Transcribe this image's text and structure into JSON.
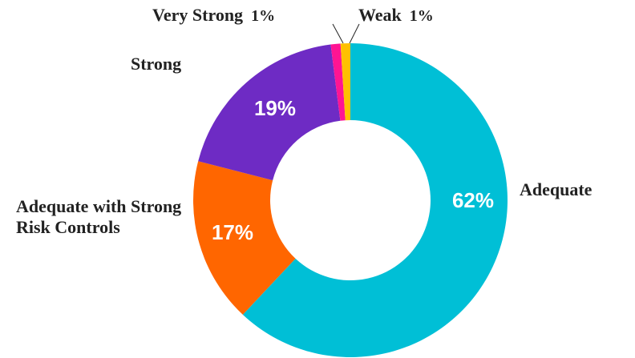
{
  "chart_data": {
    "type": "donut",
    "categories": [
      "Adequate",
      "Adequate with Strong Risk Controls",
      "Strong",
      "Very Strong",
      "Weak"
    ],
    "values": [
      62,
      17,
      19,
      1,
      1
    ],
    "value_labels": [
      "62%",
      "17%",
      "19%",
      "1%",
      "1%"
    ],
    "colors": [
      "#00bfd6",
      "#ff6600",
      "#6e2bc4",
      "#ff1493",
      "#ffc000"
    ]
  }
}
